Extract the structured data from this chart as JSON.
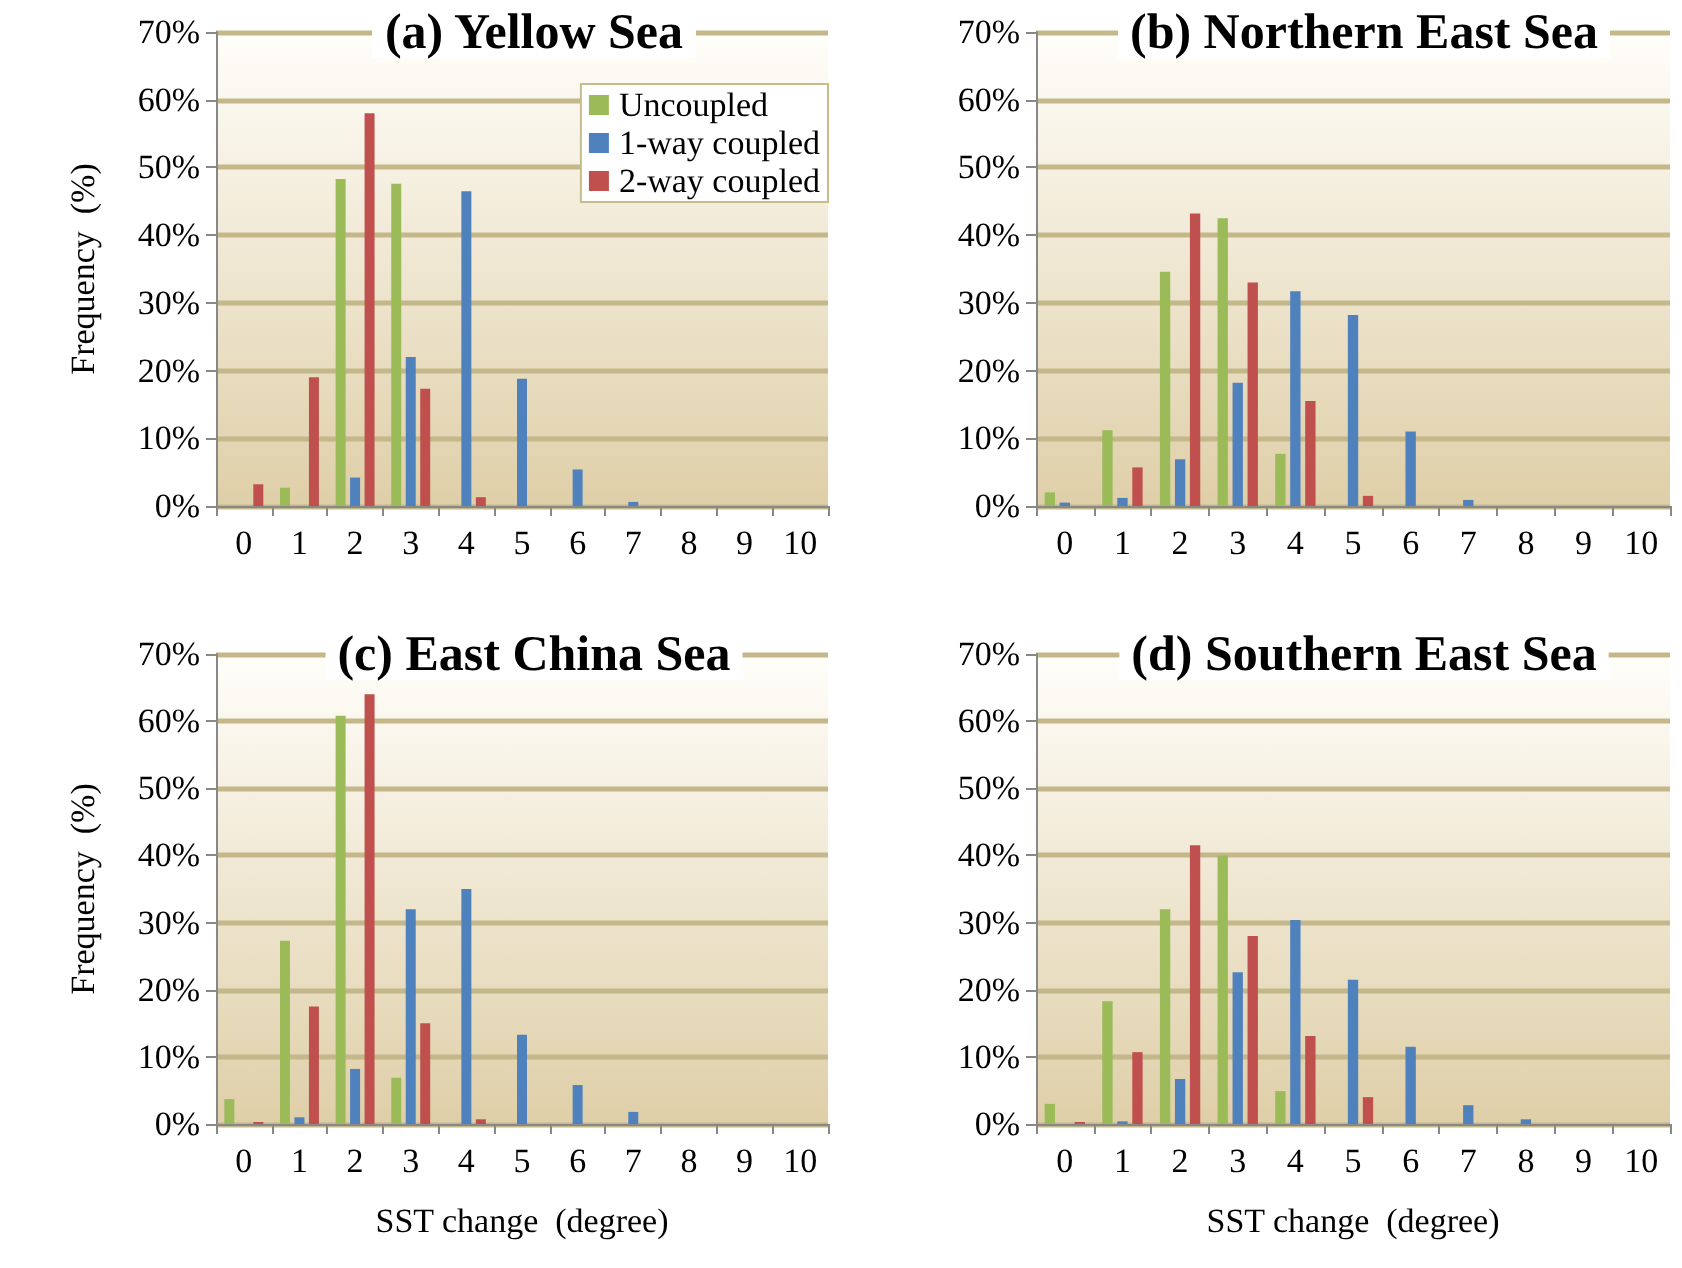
{
  "chart_data": [
    {
      "type": "bar",
      "title": "(a) Yellow Sea",
      "ylabel": "Frequency  (%)",
      "categories": [
        "0",
        "1",
        "2",
        "3",
        "4",
        "5",
        "6",
        "7",
        "8",
        "9",
        "10"
      ],
      "series": [
        {
          "name": "Uncoupled",
          "color": "#9bbb59",
          "values": [
            0,
            2.7,
            48.3,
            47.6,
            0,
            0,
            0,
            0,
            0,
            0,
            0
          ]
        },
        {
          "name": "1-way coupled",
          "color": "#4f81bd",
          "values": [
            0,
            0,
            4.2,
            22,
            46.5,
            18.8,
            5.4,
            0.6,
            0,
            0,
            0
          ]
        },
        {
          "name": "2-way coupled",
          "color": "#c0504d",
          "values": [
            3.2,
            19,
            58,
            17.3,
            1.3,
            0,
            0,
            0,
            0,
            0,
            0
          ]
        }
      ],
      "ylim": [
        0,
        70
      ],
      "yticks": [
        {
          "value": 0,
          "label": "0%"
        },
        {
          "value": 10,
          "label": "10%"
        },
        {
          "value": 20,
          "label": "20%"
        },
        {
          "value": 30,
          "label": "30%"
        },
        {
          "value": 40,
          "label": "40%"
        },
        {
          "value": 50,
          "label": "50%"
        },
        {
          "value": 60,
          "label": "60%"
        },
        {
          "value": 70,
          "label": "70%"
        }
      ],
      "grid": "y",
      "legend": "top right"
    },
    {
      "type": "bar",
      "title": "(b) Northern East Sea",
      "categories": [
        "0",
        "1",
        "2",
        "3",
        "4",
        "5",
        "6",
        "7",
        "8",
        "9",
        "10"
      ],
      "series": [
        {
          "color": "#9bbb59",
          "values": [
            2,
            11.2,
            34.6,
            42.5,
            7.7,
            0,
            0,
            0,
            0,
            0,
            0
          ]
        },
        {
          "color": "#4f81bd",
          "values": [
            0.5,
            1.2,
            6.9,
            18.2,
            31.7,
            28.2,
            11,
            0.9,
            0,
            0,
            0
          ]
        },
        {
          "color": "#c0504d",
          "values": [
            0,
            5.7,
            43.2,
            33,
            15.5,
            1.5,
            0,
            0,
            0,
            0,
            0
          ]
        }
      ],
      "ylim": [
        0,
        70
      ],
      "yticks": [
        {
          "value": 0,
          "label": "0%"
        },
        {
          "value": 10,
          "label": "10%"
        },
        {
          "value": 20,
          "label": "20%"
        },
        {
          "value": 30,
          "label": "30%"
        },
        {
          "value": 40,
          "label": "40%"
        },
        {
          "value": 50,
          "label": "50%"
        },
        {
          "value": 60,
          "label": "60%"
        },
        {
          "value": 70,
          "label": "70%"
        }
      ],
      "grid": "y"
    },
    {
      "type": "bar",
      "title": "(c) East China Sea",
      "xlabel": "SST change  (degree)",
      "ylabel": "Frequency  (%)",
      "categories": [
        "0",
        "1",
        "2",
        "3",
        "4",
        "5",
        "6",
        "7",
        "8",
        "9",
        "10"
      ],
      "series": [
        {
          "color": "#9bbb59",
          "values": [
            3.7,
            27.3,
            60.8,
            6.9,
            0,
            0,
            0,
            0,
            0,
            0,
            0
          ]
        },
        {
          "color": "#4f81bd",
          "values": [
            0,
            1,
            8.2,
            32,
            35,
            13.3,
            5.8,
            1.8,
            0,
            0,
            0
          ]
        },
        {
          "color": "#c0504d",
          "values": [
            0.3,
            17.5,
            64,
            15,
            0.7,
            0,
            0,
            0,
            0,
            0,
            0
          ]
        }
      ],
      "ylim": [
        0,
        70
      ],
      "yticks": [
        {
          "value": 0,
          "label": "0%"
        },
        {
          "value": 10,
          "label": "10%"
        },
        {
          "value": 20,
          "label": "20%"
        },
        {
          "value": 30,
          "label": "30%"
        },
        {
          "value": 40,
          "label": "40%"
        },
        {
          "value": 50,
          "label": "50%"
        },
        {
          "value": 60,
          "label": "60%"
        },
        {
          "value": 70,
          "label": "70%"
        }
      ],
      "grid": "y"
    },
    {
      "type": "bar",
      "title": "(d) Southern East Sea",
      "xlabel": "SST change  (degree)",
      "categories": [
        "0",
        "1",
        "2",
        "3",
        "4",
        "5",
        "6",
        "7",
        "8",
        "9",
        "10"
      ],
      "series": [
        {
          "color": "#9bbb59",
          "values": [
            3,
            18.3,
            32,
            40,
            4.9,
            0,
            0,
            0,
            0,
            0,
            0
          ]
        },
        {
          "color": "#4f81bd",
          "values": [
            0,
            0.4,
            6.7,
            22.6,
            30.4,
            21.5,
            11.5,
            2.8,
            0.7,
            0,
            0
          ]
        },
        {
          "color": "#c0504d",
          "values": [
            0.3,
            10.7,
            41.5,
            28,
            13.1,
            4,
            0,
            0,
            0,
            0,
            0
          ]
        }
      ],
      "ylim": [
        0,
        70
      ],
      "yticks": [
        {
          "value": 0,
          "label": "0%"
        },
        {
          "value": 10,
          "label": "10%"
        },
        {
          "value": 20,
          "label": "20%"
        },
        {
          "value": 30,
          "label": "30%"
        },
        {
          "value": 40,
          "label": "40%"
        },
        {
          "value": 50,
          "label": "50%"
        },
        {
          "value": 60,
          "label": "60%"
        },
        {
          "value": 70,
          "label": "70%"
        }
      ],
      "grid": "y"
    }
  ]
}
